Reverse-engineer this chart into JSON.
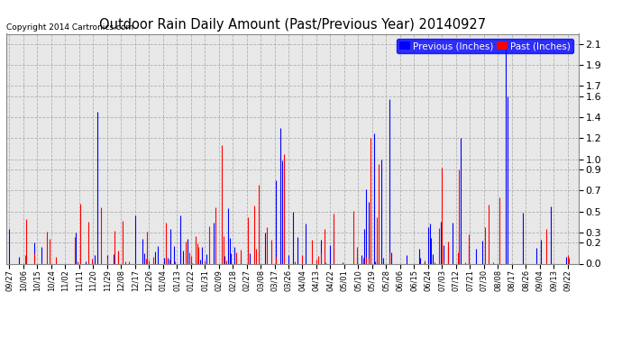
{
  "title": "Outdoor Rain Daily Amount (Past/Previous Year) 20140927",
  "copyright": "Copyright 2014 Cartronics.com",
  "legend_previous": "Previous (Inches)",
  "legend_past": "Past (Inches)",
  "color_previous": "#0000FF",
  "color_past": "#FF0000",
  "bg_color": "#FFFFFF",
  "plot_bg_color": "#E8E8E8",
  "grid_color": "#AAAAAA",
  "yticks": [
    0.0,
    0.2,
    0.3,
    0.5,
    0.7,
    0.9,
    1.0,
    1.2,
    1.4,
    1.6,
    1.7,
    1.9,
    2.1
  ],
  "ylim": [
    0.0,
    2.2
  ],
  "tick_labels": [
    "09/27",
    "10/06",
    "10/15",
    "10/24",
    "11/02",
    "11/11",
    "11/20",
    "11/29",
    "12/08",
    "12/17",
    "12/26",
    "01/04",
    "01/13",
    "01/22",
    "01/31",
    "02/09",
    "02/18",
    "02/27",
    "03/08",
    "03/17",
    "03/26",
    "04/04",
    "04/13",
    "04/22",
    "05/01",
    "05/10",
    "05/19",
    "05/28",
    "06/06",
    "06/15",
    "06/24",
    "07/03",
    "07/12",
    "07/21",
    "07/30",
    "08/08",
    "08/17",
    "08/26",
    "09/04",
    "09/13",
    "09/22"
  ],
  "n_days": 366
}
